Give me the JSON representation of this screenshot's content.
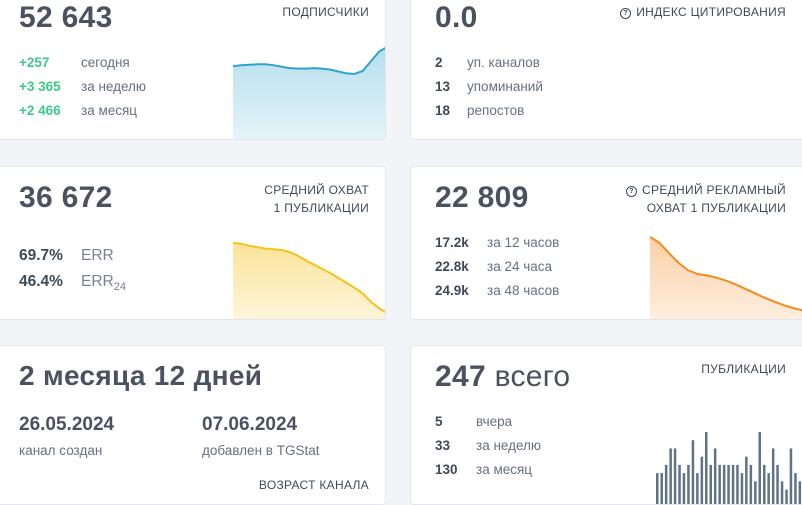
{
  "subscribers": {
    "value": "52 643",
    "title": "ПОДПИСЧИКИ",
    "stats": [
      {
        "value": "+257",
        "label": "сегодня"
      },
      {
        "value": "+3 365",
        "label": "за неделю"
      },
      {
        "value": "+2 466",
        "label": "за месяц"
      }
    ],
    "color": "#2ea3cc"
  },
  "citation": {
    "value": "0.0",
    "title": "ИНДЕКС ЦИТИРОВАНИЯ",
    "stats": [
      {
        "value": "2",
        "label": "уп. каналов"
      },
      {
        "value": "13",
        "label": "упоминаний"
      },
      {
        "value": "18",
        "label": "репостов"
      }
    ],
    "color": "#3cc98a"
  },
  "reach": {
    "value": "36 672",
    "title_line1": "СРЕДНИЙ ОХВАТ",
    "title_line2": "1 ПУБЛИКАЦИИ",
    "err": {
      "value": "69.7%",
      "label": "ERR"
    },
    "err24": {
      "value": "46.4%",
      "label": "ERR",
      "sub": "24"
    },
    "color": "#f5c21b"
  },
  "ad_reach": {
    "value": "22 809",
    "title_line1": "СРЕДНИЙ РЕКЛАМНЫЙ",
    "title_line2": "ОХВАТ 1 ПУБЛИКАЦИИ",
    "stats": [
      {
        "value": "17.2k",
        "label": "за 12 часов"
      },
      {
        "value": "22.8k",
        "label": "за 24 часа"
      },
      {
        "value": "24.9k",
        "label": "за 48 часов"
      }
    ],
    "color": "#f58a1f"
  },
  "age": {
    "value": "2 месяца 12 дней",
    "created_date": "26.05.2024",
    "created_label": "канал создан",
    "added_date": "07.06.2024",
    "added_label": "добавлен в TGStat",
    "title": "ВОЗРАСТ КАНАЛА"
  },
  "publications": {
    "value": "247",
    "unit": "всего",
    "title": "ПУБЛИКАЦИИ",
    "stats": [
      {
        "value": "5",
        "label": "вчера"
      },
      {
        "value": "33",
        "label": "за неделю"
      },
      {
        "value": "130",
        "label": "за месяц"
      }
    ],
    "color": "#5f7384"
  },
  "sparklines": {
    "subscribers": [
      0.4,
      0.38,
      0.37,
      0.36,
      0.36,
      0.38,
      0.41,
      0.44,
      0.45,
      0.45,
      0.44,
      0.45,
      0.47,
      0.51,
      0.55,
      0.56,
      0.5,
      0.3,
      0.1,
      0.0
    ],
    "reach": [
      0.0,
      0.01,
      0.04,
      0.06,
      0.08,
      0.09,
      0.1,
      0.13,
      0.18,
      0.25,
      0.31,
      0.37,
      0.43,
      0.5,
      0.57,
      0.64,
      0.72,
      0.84,
      0.93,
      1.0
    ],
    "ad_reach": [
      0.0,
      0.08,
      0.22,
      0.35,
      0.45,
      0.5,
      0.52,
      0.55,
      0.59,
      0.64,
      0.7,
      0.76,
      0.82,
      0.87,
      0.92,
      0.96,
      0.99,
      1.0
    ],
    "publications": [
      4,
      4,
      5,
      7,
      7,
      5,
      4,
      5,
      8,
      4,
      6,
      9,
      5,
      7,
      5,
      5,
      5,
      5,
      5,
      4,
      6,
      5,
      3,
      9,
      5,
      4,
      7,
      5,
      3,
      2,
      7,
      4,
      3,
      5,
      6
    ]
  }
}
